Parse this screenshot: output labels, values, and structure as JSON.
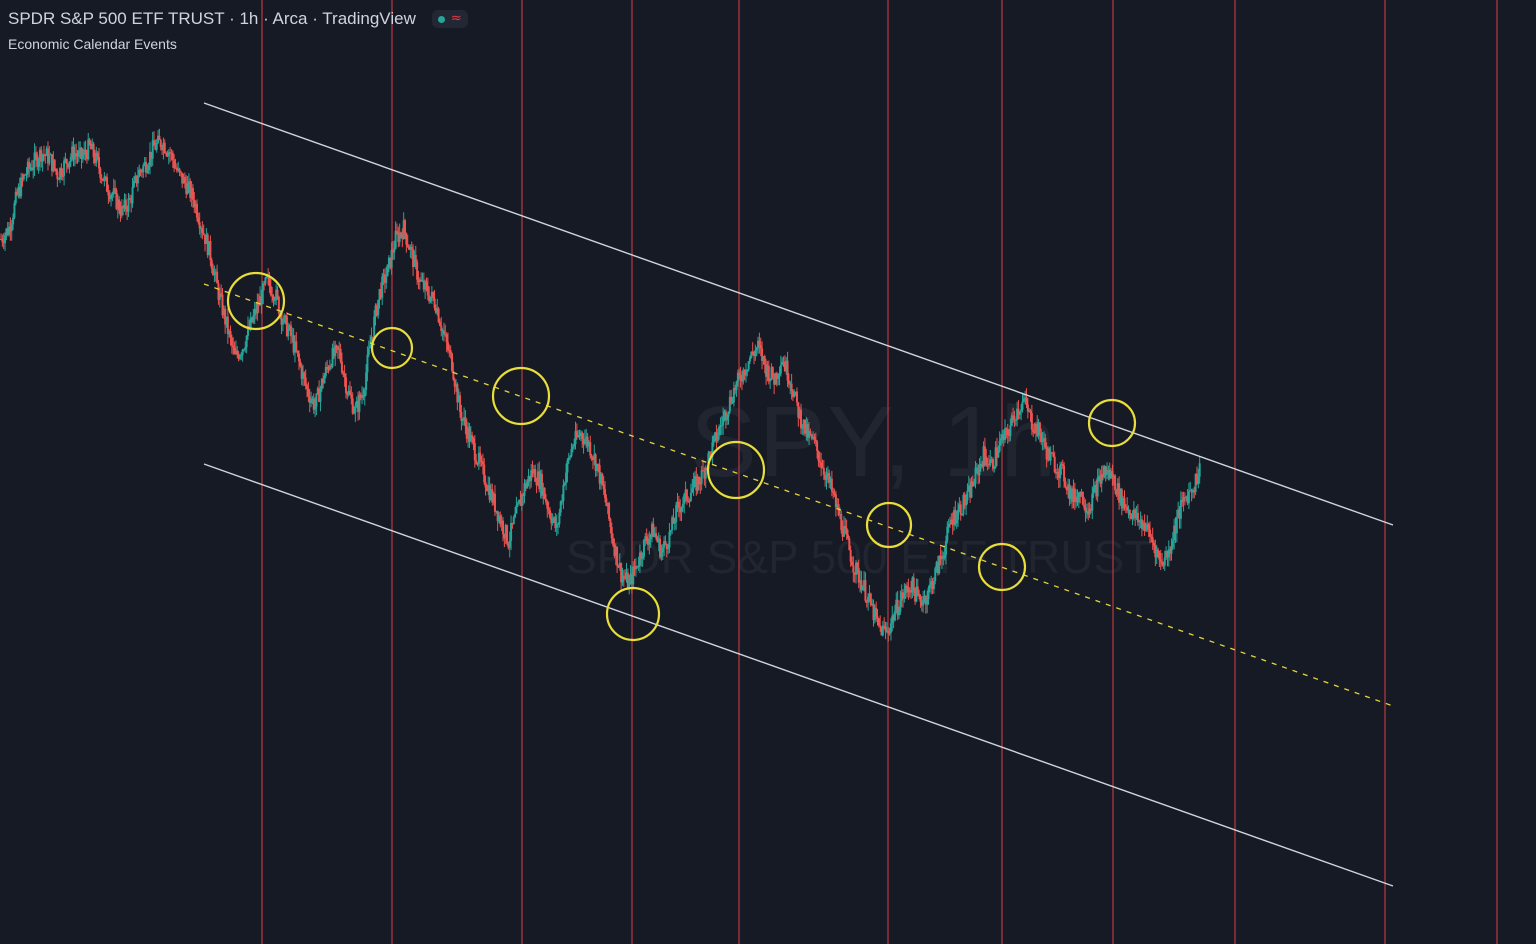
{
  "header": {
    "title": "SPDR S&P 500 ETF TRUST · 1h · Arca · TradingView",
    "indicator": "Economic Calendar Events",
    "status_dot_color": "#26a69a",
    "status_wave_glyph": "≈",
    "status_wave_color": "#f23645"
  },
  "watermark": {
    "ticker": "SPY, 1h",
    "name": "SPDR S&P 500 ETF TRUST"
  },
  "colors": {
    "background": "#161a25",
    "up_candle": "#26a69a",
    "down_candle": "#ef5350",
    "channel_line": "#d1d4dc",
    "midline": "#e6d53a",
    "circle": "#e8dd3a",
    "event_line": "#b2393f"
  },
  "chart_data": {
    "type": "candlestick",
    "symbol": "SPY",
    "timeframe": "1h",
    "exchange": "Arca",
    "price_shape": [
      0.78,
      0.8,
      0.86,
      0.9,
      0.92,
      0.94,
      0.93,
      0.9,
      0.92,
      0.94,
      0.93,
      0.95,
      0.92,
      0.88,
      0.86,
      0.83,
      0.85,
      0.9,
      0.92,
      0.95,
      0.96,
      0.94,
      0.9,
      0.88,
      0.85,
      0.8,
      0.75,
      0.68,
      0.62,
      0.56,
      0.58,
      0.62,
      0.66,
      0.7,
      0.68,
      0.63,
      0.6,
      0.55,
      0.5,
      0.47,
      0.52,
      0.56,
      0.57,
      0.5,
      0.46,
      0.5,
      0.6,
      0.68,
      0.72,
      0.78,
      0.8,
      0.75,
      0.7,
      0.68,
      0.66,
      0.6,
      0.55,
      0.46,
      0.42,
      0.38,
      0.34,
      0.3,
      0.26,
      0.22,
      0.27,
      0.32,
      0.35,
      0.33,
      0.28,
      0.24,
      0.34,
      0.4,
      0.42,
      0.4,
      0.36,
      0.3,
      0.22,
      0.16,
      0.14,
      0.18,
      0.22,
      0.24,
      0.2,
      0.23,
      0.28,
      0.3,
      0.32,
      0.34,
      0.38,
      0.42,
      0.46,
      0.5,
      0.53,
      0.56,
      0.58,
      0.54,
      0.52,
      0.56,
      0.52,
      0.46,
      0.42,
      0.4,
      0.36,
      0.32,
      0.27,
      0.22,
      0.17,
      0.14,
      0.1,
      0.06,
      0.05,
      0.09,
      0.12,
      0.14,
      0.11,
      0.12,
      0.16,
      0.2,
      0.26,
      0.28,
      0.3,
      0.34,
      0.38,
      0.36,
      0.4,
      0.42,
      0.46,
      0.48,
      0.44,
      0.42,
      0.38,
      0.36,
      0.34,
      0.3,
      0.31,
      0.28,
      0.32,
      0.35,
      0.34,
      0.3,
      0.28,
      0.26,
      0.25,
      0.22,
      0.18,
      0.2,
      0.26,
      0.3,
      0.32,
      0.36
    ],
    "events": [
      {
        "name": "Economic Calendar Events"
      }
    ]
  }
}
